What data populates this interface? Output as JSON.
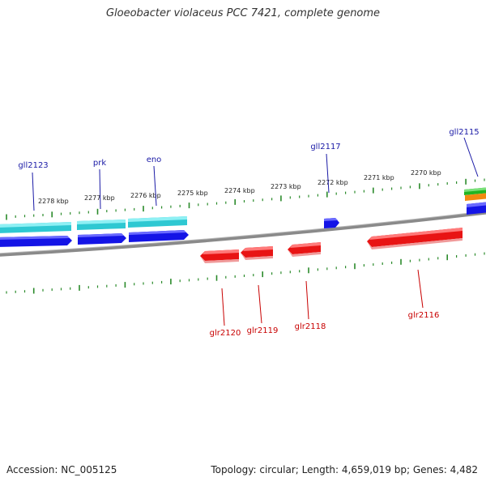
{
  "title": "Gloeobacter violaceus PCC 7421, complete genome",
  "footer": {
    "accession": "Accession: NC_005125",
    "topology": "Topology: circular; Length: 4,659,019 bp; Genes: 4,482"
  },
  "tick_labels": [
    "2278 kbp",
    "2277 kbp",
    "2276 kbp",
    "2275 kbp",
    "2274 kbp",
    "2273 kbp",
    "2272 kbp",
    "2271 kbp",
    "2270 kbp"
  ],
  "gene_labels": {
    "forward": [
      "gll2123",
      "prk",
      "eno",
      "gll2117",
      "gll2115"
    ],
    "reverse": [
      "glr2120",
      "glr2119",
      "glr2118",
      "glr2116"
    ]
  },
  "colors": {
    "backbone": "#808080",
    "forward_label": "#1a1aa6",
    "reverse_label": "#c80000",
    "forward_gene": "#1010e0",
    "reverse_gene": "#e81010",
    "rna_gene": "#30c8d0",
    "tick": "#2a8a2a"
  }
}
